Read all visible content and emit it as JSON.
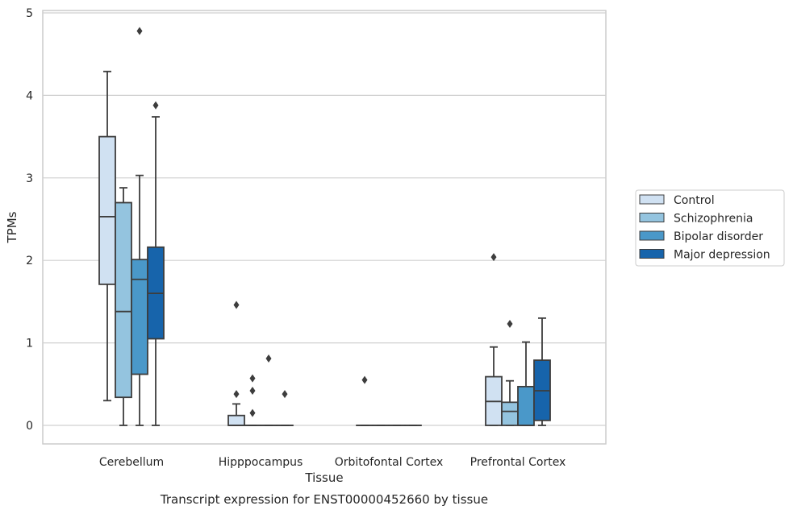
{
  "chart_data": {
    "type": "box",
    "title": "",
    "caption": "Transcript expression for ENST00000452660 by tissue",
    "xlabel": "Tissue",
    "ylabel": "TPMs",
    "ylim": [
      -0.22,
      5.05
    ],
    "yticks": [
      0,
      1,
      2,
      3,
      4,
      5
    ],
    "grid": "horizontal",
    "legend_position": "right",
    "categories": [
      "Cerebellum",
      "Hipppocampus",
      "Orbitofontal Cortex",
      "Prefrontal Cortex"
    ],
    "series": [
      {
        "name": "Control",
        "color": "#d0e1f2",
        "boxes": [
          {
            "whislo": 0.3,
            "q1": 1.71,
            "med": 2.53,
            "q3": 3.5,
            "whishi": 4.29,
            "fliers": []
          },
          {
            "whislo": 0.0,
            "q1": 0.0,
            "med": 0.0,
            "q3": 0.12,
            "whishi": 0.26,
            "fliers": [
              0.38,
              1.46
            ]
          },
          {
            "whislo": 0.0,
            "q1": 0.0,
            "med": 0.0,
            "q3": 0.0,
            "whishi": 0.0,
            "fliers": [
              0.55
            ]
          },
          {
            "whislo": 0.0,
            "q1": 0.0,
            "med": 0.29,
            "q3": 0.59,
            "whishi": 0.95,
            "fliers": [
              2.04
            ]
          }
        ]
      },
      {
        "name": "Schizophrenia",
        "color": "#94c4df",
        "boxes": [
          {
            "whislo": 0.0,
            "q1": 0.34,
            "med": 1.38,
            "q3": 2.7,
            "whishi": 2.88,
            "fliers": []
          },
          {
            "whislo": 0.0,
            "q1": 0.0,
            "med": 0.0,
            "q3": 0.0,
            "whishi": 0.0,
            "fliers": [
              0.15,
              0.42,
              0.57
            ]
          },
          {
            "whislo": 0.0,
            "q1": 0.0,
            "med": 0.0,
            "q3": 0.0,
            "whishi": 0.0,
            "fliers": []
          },
          {
            "whislo": 0.0,
            "q1": 0.0,
            "med": 0.17,
            "q3": 0.28,
            "whishi": 0.54,
            "fliers": [
              1.23
            ]
          }
        ]
      },
      {
        "name": "Bipolar disorder",
        "color": "#4a98c9",
        "boxes": [
          {
            "whislo": 0.0,
            "q1": 0.62,
            "med": 1.77,
            "q3": 2.01,
            "whishi": 3.03,
            "fliers": [
              4.78
            ]
          },
          {
            "whislo": 0.0,
            "q1": 0.0,
            "med": 0.0,
            "q3": 0.0,
            "whishi": 0.0,
            "fliers": [
              0.81
            ]
          },
          {
            "whislo": 0.0,
            "q1": 0.0,
            "med": 0.0,
            "q3": 0.0,
            "whishi": 0.0,
            "fliers": []
          },
          {
            "whislo": 0.0,
            "q1": 0.0,
            "med": 0.0,
            "q3": 0.47,
            "whishi": 1.01,
            "fliers": []
          }
        ]
      },
      {
        "name": "Major depression",
        "color": "#1764ab",
        "boxes": [
          {
            "whislo": 0.0,
            "q1": 1.05,
            "med": 1.6,
            "q3": 2.16,
            "whishi": 3.74,
            "fliers": [
              3.88
            ]
          },
          {
            "whislo": 0.0,
            "q1": 0.0,
            "med": 0.0,
            "q3": 0.0,
            "whishi": 0.0,
            "fliers": [
              0.38
            ]
          },
          {
            "whislo": 0.0,
            "q1": 0.0,
            "med": 0.0,
            "q3": 0.0,
            "whishi": 0.0,
            "fliers": []
          },
          {
            "whislo": 0.0,
            "q1": 0.06,
            "med": 0.42,
            "q3": 0.79,
            "whishi": 1.3,
            "fliers": []
          }
        ]
      }
    ]
  }
}
